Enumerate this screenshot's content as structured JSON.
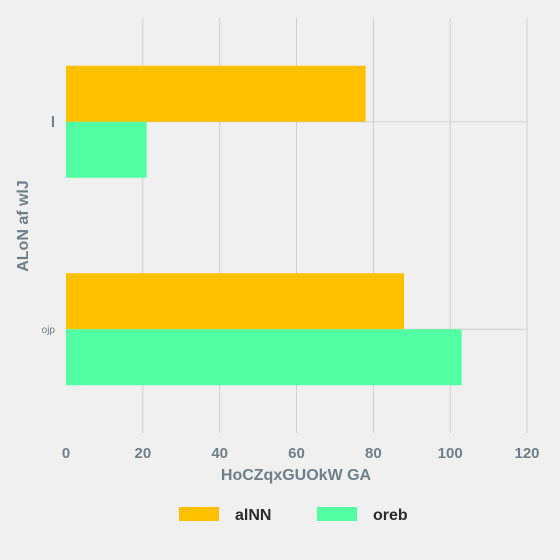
{
  "chart_data": {
    "type": "bar",
    "orientation": "horizontal",
    "title": "",
    "categories": [
      "l",
      "ojp"
    ],
    "series": [
      {
        "name": "alNN",
        "values": [
          78,
          88
        ],
        "color": "#ffc000"
      },
      {
        "name": "oreb",
        "values": [
          21,
          103
        ],
        "color": "#52ffa2"
      }
    ],
    "xlabel": "HoCZqxGUOkW GA",
    "ylabel": "ALoN af wlJ",
    "xlim": [
      0,
      120
    ],
    "xticks": [
      "0",
      "20",
      "40",
      "60",
      "80",
      "100",
      "120"
    ],
    "grid": true,
    "legend_position": "bottom-center"
  }
}
